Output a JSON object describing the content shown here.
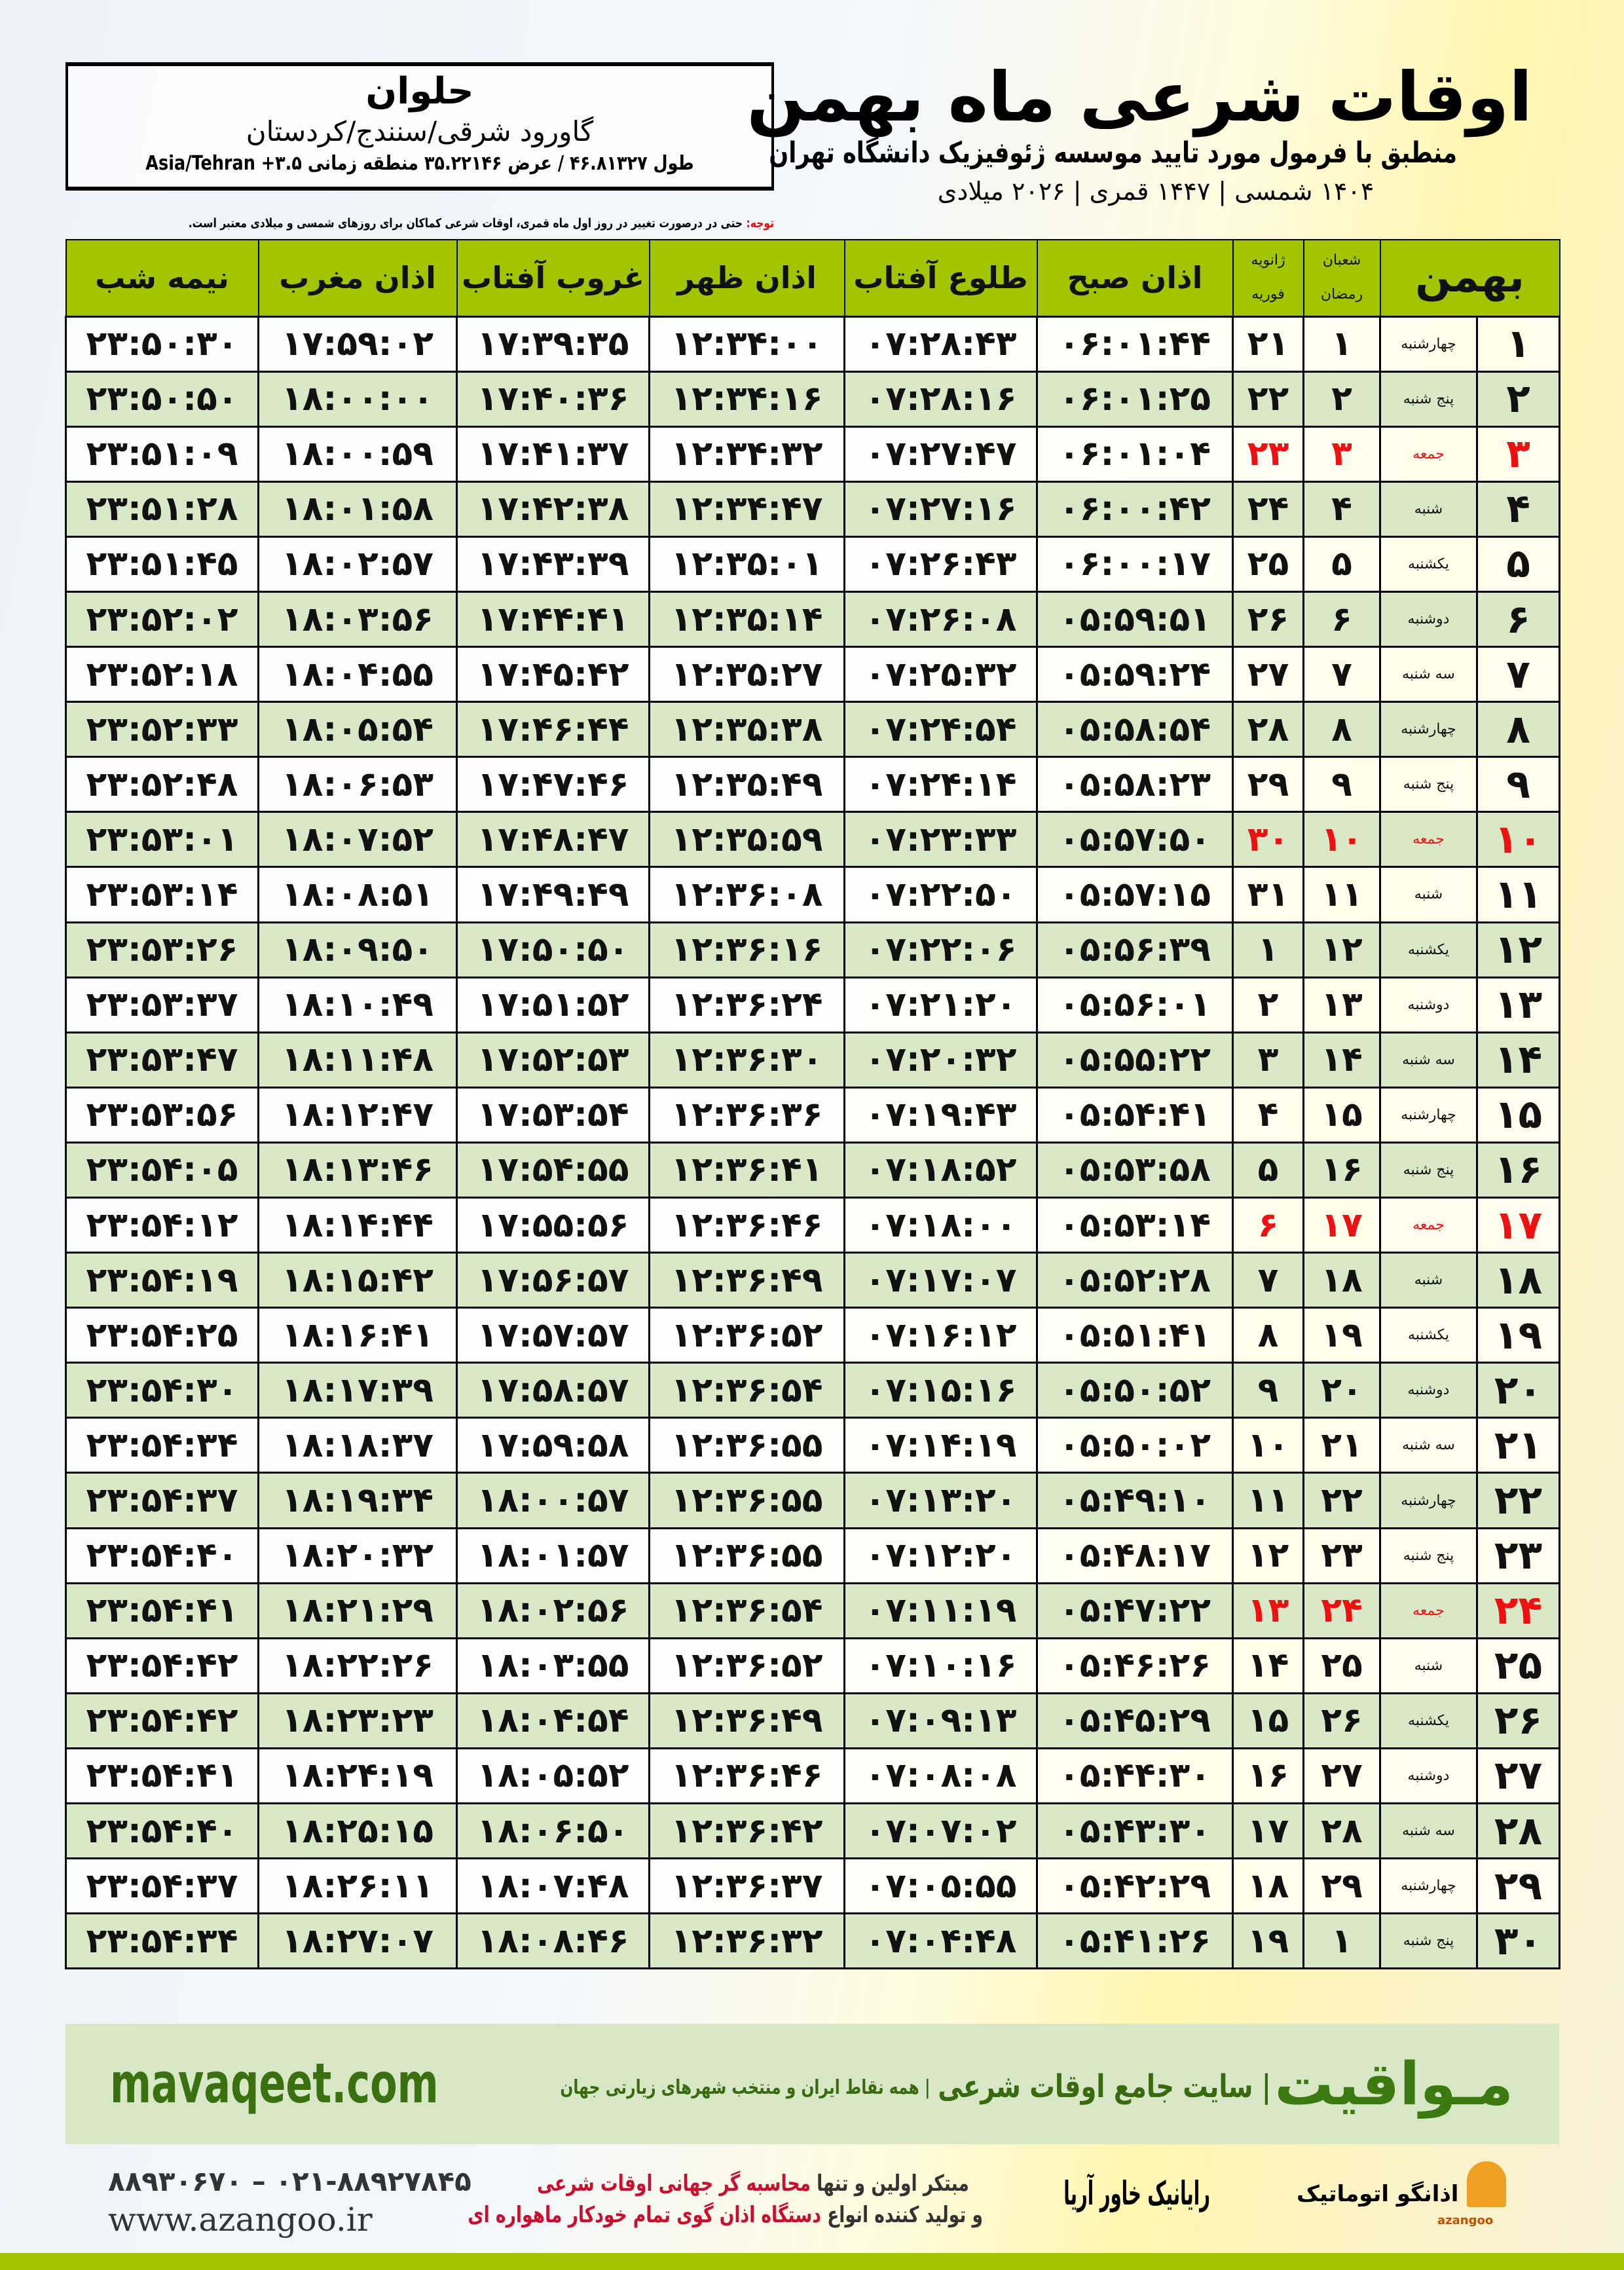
{
  "location": {
    "city": "حلوان",
    "region": "گاورود شرقی/سنندج/کردستان",
    "coords": "طول ۴۶.۸۱۳۲۷ / عرض ۳۵.۲۲۱۴۶ منطقه زمانی ۳.۵+ Asia/Tehran"
  },
  "title": {
    "main": "اوقات شرعی ماه بهمن",
    "sub": "منطبق با فرمول مورد تایید موسسه ژئوفیزیک دانشگاه تهران",
    "years": "۱۴۰۴ شمسی | ۱۴۴۷ قمری | ۲۰۲۶ میلادی"
  },
  "note": {
    "label": "توجه:",
    "text": " حتی در درصورت تغییر در روز اول ماه قمری، اوقات شرعی کماکان برای روزهای شمسی و میلادی معتبر است."
  },
  "table": {
    "headers": {
      "midnight": "نیمه شب",
      "maghrib": "اذان مغرب",
      "sunset": "غروب آفتاب",
      "dhuhr": "اذان ظهر",
      "sunrise": "طلوع آفتاب",
      "fajr": "اذان صبح",
      "gregorian_top": "ژانویه",
      "gregorian_bottom": "فوریه",
      "hijri_top": "شعبان",
      "hijri_bottom": "رمضان",
      "month": "بهمن"
    },
    "friday_color": "#ee1111",
    "header_color": "#a4c400",
    "rows": [
      {
        "day": "۱",
        "weekday": "چهارشنبه",
        "hijri": "۱",
        "greg": "۲۱",
        "fajr": "۰۶:۰۱:۴۴",
        "sunrise": "۰۷:۲۸:۴۳",
        "dhuhr": "۱۲:۳۴:۰۰",
        "sunset": "۱۷:۳۹:۳۵",
        "maghrib": "۱۷:۵۹:۰۲",
        "midnight": "۲۳:۵۰:۳۰"
      },
      {
        "day": "۲",
        "weekday": "پنج شنبه",
        "hijri": "۲",
        "greg": "۲۲",
        "fajr": "۰۶:۰۱:۲۵",
        "sunrise": "۰۷:۲۸:۱۶",
        "dhuhr": "۱۲:۳۴:۱۶",
        "sunset": "۱۷:۴۰:۳۶",
        "maghrib": "۱۸:۰۰:۰۰",
        "midnight": "۲۳:۵۰:۵۰"
      },
      {
        "day": "۳",
        "weekday": "جمعه",
        "hijri": "۳",
        "greg": "۲۳",
        "fajr": "۰۶:۰۱:۰۴",
        "sunrise": "۰۷:۲۷:۴۷",
        "dhuhr": "۱۲:۳۴:۳۲",
        "sunset": "۱۷:۴۱:۳۷",
        "maghrib": "۱۸:۰۰:۵۹",
        "midnight": "۲۳:۵۱:۰۹",
        "friday": true
      },
      {
        "day": "۴",
        "weekday": "شنبه",
        "hijri": "۴",
        "greg": "۲۴",
        "fajr": "۰۶:۰۰:۴۲",
        "sunrise": "۰۷:۲۷:۱۶",
        "dhuhr": "۱۲:۳۴:۴۷",
        "sunset": "۱۷:۴۲:۳۸",
        "maghrib": "۱۸:۰۱:۵۸",
        "midnight": "۲۳:۵۱:۲۸"
      },
      {
        "day": "۵",
        "weekday": "یکشنبه",
        "hijri": "۵",
        "greg": "۲۵",
        "fajr": "۰۶:۰۰:۱۷",
        "sunrise": "۰۷:۲۶:۴۳",
        "dhuhr": "۱۲:۳۵:۰۱",
        "sunset": "۱۷:۴۳:۳۹",
        "maghrib": "۱۸:۰۲:۵۷",
        "midnight": "۲۳:۵۱:۴۵"
      },
      {
        "day": "۶",
        "weekday": "دوشنبه",
        "hijri": "۶",
        "greg": "۲۶",
        "fajr": "۰۵:۵۹:۵۱",
        "sunrise": "۰۷:۲۶:۰۸",
        "dhuhr": "۱۲:۳۵:۱۴",
        "sunset": "۱۷:۴۴:۴۱",
        "maghrib": "۱۸:۰۳:۵۶",
        "midnight": "۲۳:۵۲:۰۲"
      },
      {
        "day": "۷",
        "weekday": "سه شنبه",
        "hijri": "۷",
        "greg": "۲۷",
        "fajr": "۰۵:۵۹:۲۴",
        "sunrise": "۰۷:۲۵:۳۲",
        "dhuhr": "۱۲:۳۵:۲۷",
        "sunset": "۱۷:۴۵:۴۲",
        "maghrib": "۱۸:۰۴:۵۵",
        "midnight": "۲۳:۵۲:۱۸"
      },
      {
        "day": "۸",
        "weekday": "چهارشنبه",
        "hijri": "۸",
        "greg": "۲۸",
        "fajr": "۰۵:۵۸:۵۴",
        "sunrise": "۰۷:۲۴:۵۴",
        "dhuhr": "۱۲:۳۵:۳۸",
        "sunset": "۱۷:۴۶:۴۴",
        "maghrib": "۱۸:۰۵:۵۴",
        "midnight": "۲۳:۵۲:۳۳"
      },
      {
        "day": "۹",
        "weekday": "پنج شنبه",
        "hijri": "۹",
        "greg": "۲۹",
        "fajr": "۰۵:۵۸:۲۳",
        "sunrise": "۰۷:۲۴:۱۴",
        "dhuhr": "۱۲:۳۵:۴۹",
        "sunset": "۱۷:۴۷:۴۶",
        "maghrib": "۱۸:۰۶:۵۳",
        "midnight": "۲۳:۵۲:۴۸"
      },
      {
        "day": "۱۰",
        "weekday": "جمعه",
        "hijri": "۱۰",
        "greg": "۳۰",
        "fajr": "۰۵:۵۷:۵۰",
        "sunrise": "۰۷:۲۳:۳۳",
        "dhuhr": "۱۲:۳۵:۵۹",
        "sunset": "۱۷:۴۸:۴۷",
        "maghrib": "۱۸:۰۷:۵۲",
        "midnight": "۲۳:۵۳:۰۱",
        "friday": true
      },
      {
        "day": "۱۱",
        "weekday": "شنبه",
        "hijri": "۱۱",
        "greg": "۳۱",
        "fajr": "۰۵:۵۷:۱۵",
        "sunrise": "۰۷:۲۲:۵۰",
        "dhuhr": "۱۲:۳۶:۰۸",
        "sunset": "۱۷:۴۹:۴۹",
        "maghrib": "۱۸:۰۸:۵۱",
        "midnight": "۲۳:۵۳:۱۴"
      },
      {
        "day": "۱۲",
        "weekday": "یکشنبه",
        "hijri": "۱۲",
        "greg": "۱",
        "fajr": "۰۵:۵۶:۳۹",
        "sunrise": "۰۷:۲۲:۰۶",
        "dhuhr": "۱۲:۳۶:۱۶",
        "sunset": "۱۷:۵۰:۵۰",
        "maghrib": "۱۸:۰۹:۵۰",
        "midnight": "۲۳:۵۳:۲۶"
      },
      {
        "day": "۱۳",
        "weekday": "دوشنبه",
        "hijri": "۱۳",
        "greg": "۲",
        "fajr": "۰۵:۵۶:۰۱",
        "sunrise": "۰۷:۲۱:۲۰",
        "dhuhr": "۱۲:۳۶:۲۴",
        "sunset": "۱۷:۵۱:۵۲",
        "maghrib": "۱۸:۱۰:۴۹",
        "midnight": "۲۳:۵۳:۳۷"
      },
      {
        "day": "۱۴",
        "weekday": "سه شنبه",
        "hijri": "۱۴",
        "greg": "۳",
        "fajr": "۰۵:۵۵:۲۲",
        "sunrise": "۰۷:۲۰:۳۲",
        "dhuhr": "۱۲:۳۶:۳۰",
        "sunset": "۱۷:۵۲:۵۳",
        "maghrib": "۱۸:۱۱:۴۸",
        "midnight": "۲۳:۵۳:۴۷"
      },
      {
        "day": "۱۵",
        "weekday": "چهارشنبه",
        "hijri": "۱۵",
        "greg": "۴",
        "fajr": "۰۵:۵۴:۴۱",
        "sunrise": "۰۷:۱۹:۴۳",
        "dhuhr": "۱۲:۳۶:۳۶",
        "sunset": "۱۷:۵۳:۵۴",
        "maghrib": "۱۸:۱۲:۴۷",
        "midnight": "۲۳:۵۳:۵۶"
      },
      {
        "day": "۱۶",
        "weekday": "پنج شنبه",
        "hijri": "۱۶",
        "greg": "۵",
        "fajr": "۰۵:۵۳:۵۸",
        "sunrise": "۰۷:۱۸:۵۲",
        "dhuhr": "۱۲:۳۶:۴۱",
        "sunset": "۱۷:۵۴:۵۵",
        "maghrib": "۱۸:۱۳:۴۶",
        "midnight": "۲۳:۵۴:۰۵"
      },
      {
        "day": "۱۷",
        "weekday": "جمعه",
        "hijri": "۱۷",
        "greg": "۶",
        "fajr": "۰۵:۵۳:۱۴",
        "sunrise": "۰۷:۱۸:۰۰",
        "dhuhr": "۱۲:۳۶:۴۶",
        "sunset": "۱۷:۵۵:۵۶",
        "maghrib": "۱۸:۱۴:۴۴",
        "midnight": "۲۳:۵۴:۱۲",
        "friday": true
      },
      {
        "day": "۱۸",
        "weekday": "شنبه",
        "hijri": "۱۸",
        "greg": "۷",
        "fajr": "۰۵:۵۲:۲۸",
        "sunrise": "۰۷:۱۷:۰۷",
        "dhuhr": "۱۲:۳۶:۴۹",
        "sunset": "۱۷:۵۶:۵۷",
        "maghrib": "۱۸:۱۵:۴۲",
        "midnight": "۲۳:۵۴:۱۹"
      },
      {
        "day": "۱۹",
        "weekday": "یکشنبه",
        "hijri": "۱۹",
        "greg": "۸",
        "fajr": "۰۵:۵۱:۴۱",
        "sunrise": "۰۷:۱۶:۱۲",
        "dhuhr": "۱۲:۳۶:۵۲",
        "sunset": "۱۷:۵۷:۵۷",
        "maghrib": "۱۸:۱۶:۴۱",
        "midnight": "۲۳:۵۴:۲۵"
      },
      {
        "day": "۲۰",
        "weekday": "دوشنبه",
        "hijri": "۲۰",
        "greg": "۹",
        "fajr": "۰۵:۵۰:۵۲",
        "sunrise": "۰۷:۱۵:۱۶",
        "dhuhr": "۱۲:۳۶:۵۴",
        "sunset": "۱۷:۵۸:۵۷",
        "maghrib": "۱۸:۱۷:۳۹",
        "midnight": "۲۳:۵۴:۳۰"
      },
      {
        "day": "۲۱",
        "weekday": "سه شنبه",
        "hijri": "۲۱",
        "greg": "۱۰",
        "fajr": "۰۵:۵۰:۰۲",
        "sunrise": "۰۷:۱۴:۱۹",
        "dhuhr": "۱۲:۳۶:۵۵",
        "sunset": "۱۷:۵۹:۵۸",
        "maghrib": "۱۸:۱۸:۳۷",
        "midnight": "۲۳:۵۴:۳۴"
      },
      {
        "day": "۲۲",
        "weekday": "چهارشنبه",
        "hijri": "۲۲",
        "greg": "۱۱",
        "fajr": "۰۵:۴۹:۱۰",
        "sunrise": "۰۷:۱۳:۲۰",
        "dhuhr": "۱۲:۳۶:۵۵",
        "sunset": "۱۸:۰۰:۵۷",
        "maghrib": "۱۸:۱۹:۳۴",
        "midnight": "۲۳:۵۴:۳۷"
      },
      {
        "day": "۲۳",
        "weekday": "پنج شنبه",
        "hijri": "۲۳",
        "greg": "۱۲",
        "fajr": "۰۵:۴۸:۱۷",
        "sunrise": "۰۷:۱۲:۲۰",
        "dhuhr": "۱۲:۳۶:۵۵",
        "sunset": "۱۸:۰۱:۵۷",
        "maghrib": "۱۸:۲۰:۳۲",
        "midnight": "۲۳:۵۴:۴۰"
      },
      {
        "day": "۲۴",
        "weekday": "جمعه",
        "hijri": "۲۴",
        "greg": "۱۳",
        "fajr": "۰۵:۴۷:۲۲",
        "sunrise": "۰۷:۱۱:۱۹",
        "dhuhr": "۱۲:۳۶:۵۴",
        "sunset": "۱۸:۰۲:۵۶",
        "maghrib": "۱۸:۲۱:۲۹",
        "midnight": "۲۳:۵۴:۴۱",
        "friday": true
      },
      {
        "day": "۲۵",
        "weekday": "شنبه",
        "hijri": "۲۵",
        "greg": "۱۴",
        "fajr": "۰۵:۴۶:۲۶",
        "sunrise": "۰۷:۱۰:۱۶",
        "dhuhr": "۱۲:۳۶:۵۲",
        "sunset": "۱۸:۰۳:۵۵",
        "maghrib": "۱۸:۲۲:۲۶",
        "midnight": "۲۳:۵۴:۴۲"
      },
      {
        "day": "۲۶",
        "weekday": "یکشنبه",
        "hijri": "۲۶",
        "greg": "۱۵",
        "fajr": "۰۵:۴۵:۲۹",
        "sunrise": "۰۷:۰۹:۱۳",
        "dhuhr": "۱۲:۳۶:۴۹",
        "sunset": "۱۸:۰۴:۵۴",
        "maghrib": "۱۸:۲۳:۲۳",
        "midnight": "۲۳:۵۴:۴۲"
      },
      {
        "day": "۲۷",
        "weekday": "دوشنبه",
        "hijri": "۲۷",
        "greg": "۱۶",
        "fajr": "۰۵:۴۴:۳۰",
        "sunrise": "۰۷:۰۸:۰۸",
        "dhuhr": "۱۲:۳۶:۴۶",
        "sunset": "۱۸:۰۵:۵۲",
        "maghrib": "۱۸:۲۴:۱۹",
        "midnight": "۲۳:۵۴:۴۱"
      },
      {
        "day": "۲۸",
        "weekday": "سه شنبه",
        "hijri": "۲۸",
        "greg": "۱۷",
        "fajr": "۰۵:۴۳:۳۰",
        "sunrise": "۰۷:۰۷:۰۲",
        "dhuhr": "۱۲:۳۶:۴۲",
        "sunset": "۱۸:۰۶:۵۰",
        "maghrib": "۱۸:۲۵:۱۵",
        "midnight": "۲۳:۵۴:۴۰"
      },
      {
        "day": "۲۹",
        "weekday": "چهارشنبه",
        "hijri": "۲۹",
        "greg": "۱۸",
        "fajr": "۰۵:۴۲:۲۹",
        "sunrise": "۰۷:۰۵:۵۵",
        "dhuhr": "۱۲:۳۶:۳۷",
        "sunset": "۱۸:۰۷:۴۸",
        "maghrib": "۱۸:۲۶:۱۱",
        "midnight": "۲۳:۵۴:۳۷"
      },
      {
        "day": "۳۰",
        "weekday": "پنج شنبه",
        "hijri": "۱",
        "greg": "۱۹",
        "fajr": "۰۵:۴۱:۲۶",
        "sunrise": "۰۷:۰۴:۴۸",
        "dhuhr": "۱۲:۳۶:۳۲",
        "sunset": "۱۸:۰۸:۴۶",
        "maghrib": "۱۸:۲۷:۰۷",
        "midnight": "۲۳:۵۴:۳۴"
      }
    ]
  },
  "footer": {
    "brand": "مـواقیت",
    "tagline": "| سایت جامع اوقات شرعی",
    "tagline2": "| همه نقاط ایران و منتخب شهرهای زیارتی جهان",
    "site": "mavaqeet.com"
  },
  "bottom": {
    "phone": "۰۲۱-۸۸۹۲۷۸۴۵ – ۸۸۹۳۰۶۷۰",
    "website": "www.azangoo.ir",
    "slogan1_a": "مبتکر اولین و تنها ",
    "slogan1_b": "محاسبه گر جهانی اوقات شرعی",
    "slogan2_a": "و تولید کننده انواع ",
    "slogan2_b": "دستگاه اذان گوی تمام خودکار ماهواره ای",
    "logo_rayanik": "رایانیک خاور آریا",
    "logo_azangoo": "اذانگو اتوماتیک",
    "logo_azangoo_sub": "azangoo"
  }
}
